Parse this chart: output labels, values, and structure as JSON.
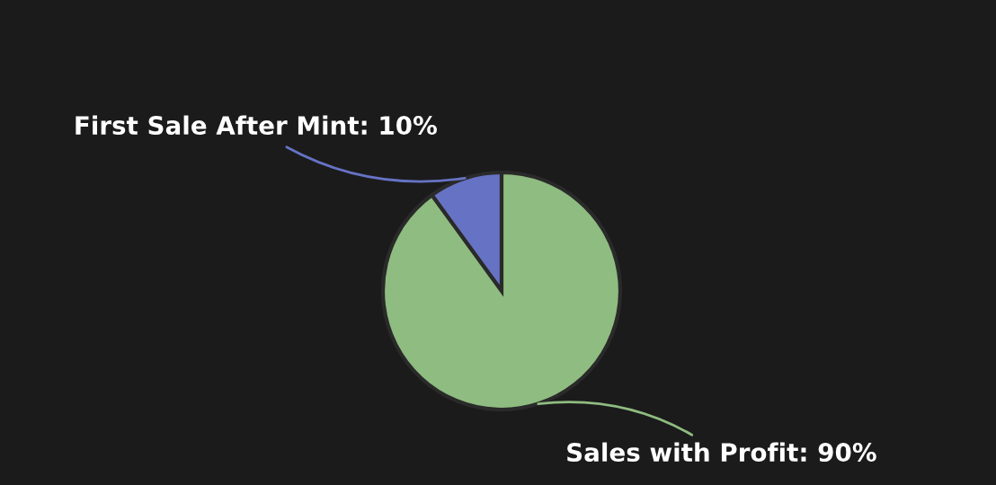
{
  "chart_data": {
    "type": "pie",
    "categories": [
      "First Sale After Mint",
      "Sales with Profit"
    ],
    "values": [
      10,
      90
    ],
    "colors": [
      "#6673c4",
      "#8fbc80"
    ],
    "value_labels": [
      "10%",
      "90%"
    ]
  }
}
